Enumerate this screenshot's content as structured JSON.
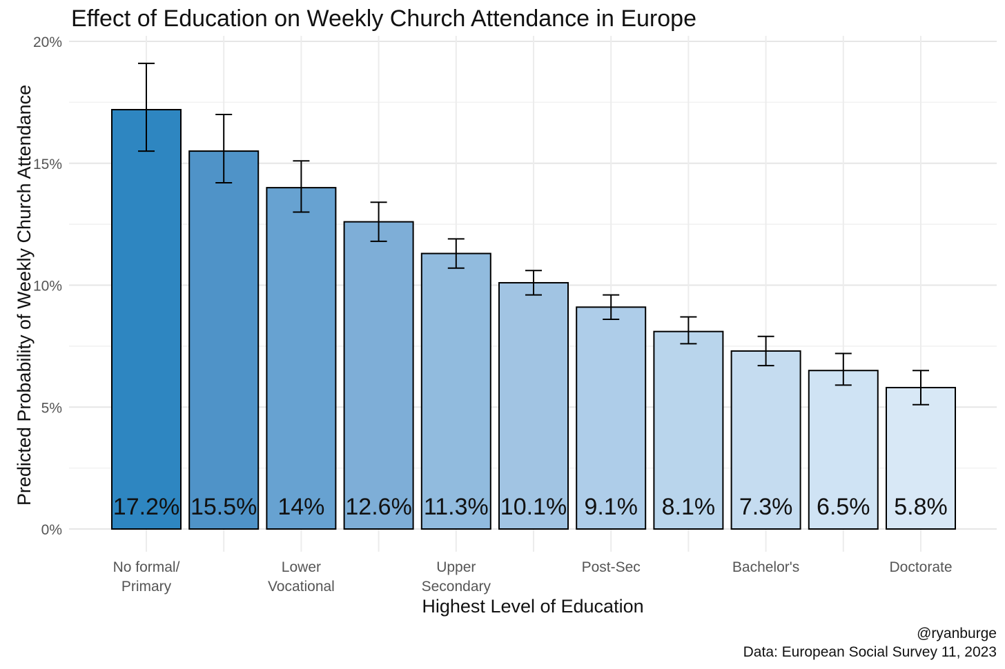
{
  "chart_data": {
    "type": "bar",
    "title": "Effect of Education on Weekly Church Attendance in Europe",
    "xlabel": "Highest Level of Education",
    "ylabel": "Predicted Probability of Weekly Church Attendance",
    "ylim": [
      0,
      0.2
    ],
    "y_ticks": [
      0,
      0.05,
      0.1,
      0.15,
      0.2
    ],
    "y_tick_labels": [
      "0%",
      "5%",
      "10%",
      "15%",
      "20%"
    ],
    "categories": [
      "No formal/ Primary",
      "",
      "Lower Vocational",
      "",
      "Upper Secondary",
      "",
      "Post-Sec",
      "",
      "Bachelor's",
      "",
      "Doctorate"
    ],
    "x_tick_labels": [
      [
        "No formal/",
        "Primary"
      ],
      [],
      [
        "Lower",
        "Vocational"
      ],
      [],
      [
        "Upper",
        "Secondary"
      ],
      [],
      [
        "Post-Sec"
      ],
      [],
      [
        "Bachelor's"
      ],
      [],
      [
        "Doctorate"
      ]
    ],
    "values": [
      0.172,
      0.155,
      0.14,
      0.126,
      0.113,
      0.101,
      0.091,
      0.081,
      0.073,
      0.065,
      0.058
    ],
    "error_low": [
      0.155,
      0.142,
      0.13,
      0.118,
      0.107,
      0.096,
      0.086,
      0.076,
      0.067,
      0.059,
      0.051
    ],
    "error_high": [
      0.191,
      0.17,
      0.151,
      0.134,
      0.119,
      0.106,
      0.096,
      0.087,
      0.079,
      0.072,
      0.065
    ],
    "data_labels": [
      "17.2%",
      "15.5%",
      "14%",
      "12.6%",
      "11.3%",
      "10.1%",
      "9.1%",
      "8.1%",
      "7.3%",
      "6.5%",
      "5.8%"
    ],
    "colors": [
      "#2e86c1",
      "#4f93c8",
      "#67a2d1",
      "#7eaed7",
      "#91bbde",
      "#a1c4e3",
      "#aecde9",
      "#b9d5ec",
      "#c5dcf0",
      "#cfe3f4",
      "#d8e8f6"
    ],
    "grid": true,
    "legend": "none"
  },
  "caption": {
    "handle": "@ryanburge",
    "source": "Data: European Social Survey 11, 2023"
  }
}
